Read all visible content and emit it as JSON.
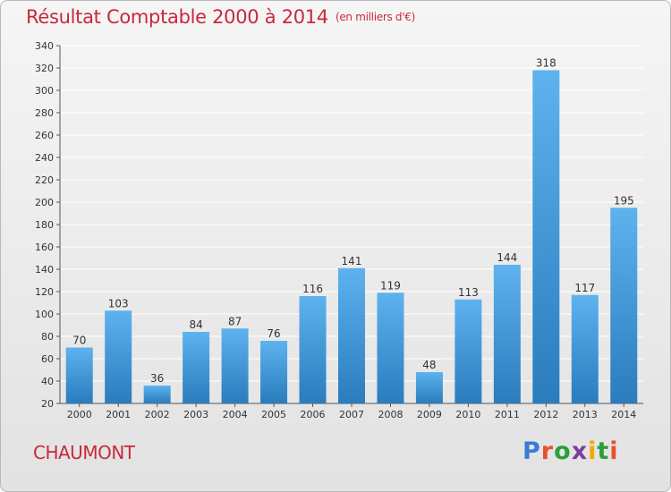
{
  "title": "Résultat Comptable 2000 à 2014",
  "unit_label": "(en milliers d'€)",
  "commune": "CHAUMONT",
  "logo": {
    "text": "Proxiti",
    "letter_colors": [
      "#3a7bd5",
      "#e8502a",
      "#2c9e3a",
      "#7a3fa0",
      "#f2a900",
      "#2c9e3a",
      "#e8502a"
    ]
  },
  "colors": {
    "title": "#c8283c",
    "bar_top": "#5eb2ee",
    "bar_bottom": "#2a7cbd",
    "grid": "#ffffff"
  },
  "chart_data": {
    "type": "bar",
    "title": "Résultat Comptable 2000 à 2014",
    "subtitle": "(en milliers d'€)",
    "categories": [
      "2000",
      "2001",
      "2002",
      "2003",
      "2004",
      "2005",
      "2006",
      "2007",
      "2008",
      "2009",
      "2010",
      "2011",
      "2012",
      "2013",
      "2014"
    ],
    "values": [
      70,
      103,
      36,
      84,
      87,
      76,
      116,
      141,
      119,
      48,
      113,
      144,
      318,
      117,
      195
    ],
    "ylim": [
      20,
      340
    ],
    "yticks": [
      20,
      40,
      60,
      80,
      100,
      120,
      140,
      160,
      180,
      200,
      220,
      240,
      260,
      280,
      300,
      320,
      340
    ],
    "grid": true,
    "xlabel": "",
    "ylabel": ""
  }
}
